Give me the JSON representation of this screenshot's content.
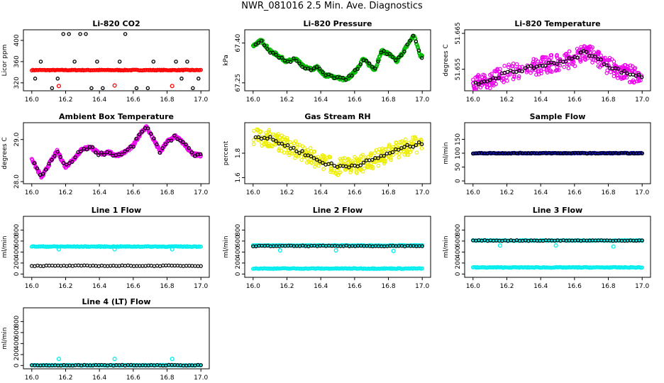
{
  "page_title": "NWR_081016  2.5 Min. Ave. Diagnostics",
  "chart_data": [
    {
      "type": "scatter",
      "title": "Li-820 CO2",
      "ylabel": "Licor ppm",
      "xlim": [
        16.0,
        17.0
      ],
      "ylim": [
        305,
        420
      ],
      "xticks": [
        "16.0",
        "16.2",
        "16.4",
        "16.6",
        "16.8",
        "17.0"
      ],
      "yticks": [
        "320",
        "360",
        "400"
      ],
      "series": [
        {
          "color": "#ff0000",
          "kind": "flat",
          "y": 344
        },
        {
          "color": "#000000",
          "kind": "levels",
          "y": [
            310,
            328,
            344,
            360,
            412
          ],
          "x_step": 0.0333
        },
        {
          "color": "#ff0000",
          "kind": "points",
          "x": [
            16.16,
            16.49,
            16.83
          ],
          "y": [
            314,
            315,
            314
          ]
        }
      ]
    },
    {
      "type": "scatter",
      "title": "Li-820 Pressure",
      "ylabel": "kPa",
      "xlim": [
        16.0,
        17.0
      ],
      "ylim": [
        67.22,
        67.45
      ],
      "xticks": [
        "16.0",
        "16.2",
        "16.4",
        "16.6",
        "16.8",
        "17.0"
      ],
      "yticks": [
        "67.25",
        "67.40"
      ],
      "series": [
        {
          "color": "#00bb00",
          "kind": "line",
          "x": [
            16.0,
            16.05,
            16.1,
            16.13,
            16.2,
            16.25,
            16.3,
            16.35,
            16.38,
            16.42,
            16.5,
            16.55,
            16.6,
            16.65,
            16.7,
            16.72,
            16.76,
            16.8,
            16.85,
            16.9,
            16.95,
            16.97,
            16.99
          ],
          "y": [
            67.39,
            67.41,
            67.37,
            67.36,
            67.33,
            67.34,
            67.31,
            67.3,
            67.31,
            67.28,
            67.27,
            67.26,
            67.29,
            67.34,
            67.31,
            67.3,
            67.37,
            67.36,
            67.33,
            67.38,
            67.43,
            67.39,
            67.35
          ]
        },
        {
          "color": "#000000",
          "kind": "sample"
        }
      ]
    },
    {
      "type": "scatter",
      "title": "Li-820 Temperature",
      "ylabel": "degrees C",
      "xlim": [
        16.0,
        17.0
      ],
      "ylim": [
        51.649,
        51.666
      ],
      "xticks": [
        "16.0",
        "16.2",
        "16.4",
        "16.6",
        "16.8",
        "17.0"
      ],
      "yticks": [
        "51.655",
        "51.665"
      ],
      "series": [
        {
          "color": "#ee00ee",
          "kind": "noisy",
          "x": [
            16.0,
            16.1,
            16.2,
            16.3,
            16.4,
            16.5,
            16.6,
            16.65,
            16.7,
            16.8,
            16.9,
            17.0
          ],
          "y": [
            51.651,
            51.652,
            51.654,
            51.655,
            51.656,
            51.657,
            51.658,
            51.66,
            51.659,
            51.656,
            51.654,
            51.653
          ]
        },
        {
          "color": "#000000",
          "kind": "sample"
        }
      ]
    },
    {
      "type": "scatter",
      "title": "Ambient Box Temperature",
      "ylabel": "degrees C",
      "xlim": [
        16.0,
        17.0
      ],
      "ylim": [
        27.95,
        29.4
      ],
      "xticks": [
        "16.0",
        "16.2",
        "16.4",
        "16.6",
        "16.8",
        "17.0"
      ],
      "yticks": [
        "28.0",
        "29.0"
      ],
      "series": [
        {
          "color": "#ee00ee",
          "kind": "line",
          "x": [
            16.0,
            16.03,
            16.06,
            16.1,
            16.15,
            16.2,
            16.25,
            16.3,
            16.35,
            16.4,
            16.45,
            16.5,
            16.55,
            16.6,
            16.65,
            16.68,
            16.72,
            16.76,
            16.8,
            16.85,
            16.9,
            16.95,
            17.0
          ],
          "y": [
            28.55,
            28.3,
            28.1,
            28.4,
            28.72,
            28.35,
            28.55,
            28.78,
            28.82,
            28.65,
            28.7,
            28.62,
            28.7,
            28.85,
            29.2,
            29.3,
            29.0,
            28.7,
            28.95,
            29.08,
            28.9,
            28.65,
            28.62
          ]
        },
        {
          "color": "#000000",
          "kind": "sample"
        }
      ]
    },
    {
      "type": "scatter",
      "title": "Gas Stream RH",
      "ylabel": "percent",
      "xlim": [
        16.0,
        17.0
      ],
      "ylim": [
        1.55,
        2.05
      ],
      "xticks": [
        "16.0",
        "16.2",
        "16.4",
        "16.6",
        "16.8",
        "17.0"
      ],
      "yticks": [
        "1.6",
        "1.8"
      ],
      "series": [
        {
          "color": "#eeee00",
          "kind": "noisy",
          "x": [
            16.0,
            16.1,
            16.2,
            16.3,
            16.4,
            16.5,
            16.6,
            16.7,
            16.8,
            16.9,
            17.0
          ],
          "y": [
            1.94,
            1.92,
            1.86,
            1.8,
            1.73,
            1.69,
            1.7,
            1.74,
            1.8,
            1.85,
            1.88
          ]
        },
        {
          "color": "#000000",
          "kind": "sample"
        }
      ]
    },
    {
      "type": "scatter",
      "title": "Sample Flow",
      "ylabel": "ml/min",
      "xlim": [
        16.0,
        17.0
      ],
      "ylim": [
        -10,
        210
      ],
      "xticks": [
        "16.0",
        "16.2",
        "16.4",
        "16.6",
        "16.8",
        "17.0"
      ],
      "yticks": [
        "0",
        "50",
        "100",
        "150"
      ],
      "series": [
        {
          "color": "#0000aa",
          "kind": "flat",
          "y": 100
        },
        {
          "color": "#000000",
          "kind": "flat",
          "y": 100
        }
      ]
    },
    {
      "type": "scatter",
      "title": "Line 1 Flow",
      "ylabel": "ml/min",
      "xlim": [
        16.0,
        17.0
      ],
      "ylim": [
        -60,
        1050
      ],
      "xticks": [
        "16.0",
        "16.2",
        "16.4",
        "16.6",
        "16.8",
        "17.0"
      ],
      "yticks": [
        "0",
        "200",
        "400",
        "600",
        "800"
      ],
      "series": [
        {
          "color": "#00eeee",
          "kind": "flat",
          "y": 500
        },
        {
          "color": "#00eeee",
          "kind": "points",
          "x": [
            16.16,
            16.49,
            16.83
          ],
          "y": [
            450,
            450,
            450
          ]
        },
        {
          "color": "#000000",
          "kind": "flat",
          "y": 150
        }
      ]
    },
    {
      "type": "scatter",
      "title": "Line 2 Flow",
      "ylabel": "ml/min",
      "xlim": [
        16.0,
        17.0
      ],
      "ylim": [
        -60,
        1050
      ],
      "xticks": [
        "16.0",
        "16.2",
        "16.4",
        "16.6",
        "16.8",
        "17.0"
      ],
      "yticks": [
        "0",
        "200",
        "400",
        "600",
        "800"
      ],
      "series": [
        {
          "color": "#00eeee",
          "kind": "flat",
          "y": 100
        },
        {
          "color": "#00eeee",
          "kind": "flat",
          "y": 520
        },
        {
          "color": "#00eeee",
          "kind": "points",
          "x": [
            16.16,
            16.49,
            16.83
          ],
          "y": [
            430,
            430,
            420
          ]
        },
        {
          "color": "#000000",
          "kind": "flat",
          "y": 510
        }
      ]
    },
    {
      "type": "scatter",
      "title": "Line 3 Flow",
      "ylabel": "ml/min",
      "xlim": [
        16.0,
        17.0
      ],
      "ylim": [
        -60,
        1050
      ],
      "xticks": [
        "16.0",
        "16.2",
        "16.4",
        "16.6",
        "16.8",
        "17.0"
      ],
      "yticks": [
        "0",
        "200",
        "400",
        "600",
        "800"
      ],
      "series": [
        {
          "color": "#00eeee",
          "kind": "flat",
          "y": 120
        },
        {
          "color": "#00eeee",
          "kind": "flat",
          "y": 610
        },
        {
          "color": "#00eeee",
          "kind": "points",
          "x": [
            16.16,
            16.49,
            16.83
          ],
          "y": [
            520,
            520,
            500
          ]
        },
        {
          "color": "#000000",
          "kind": "flat",
          "y": 610
        }
      ]
    },
    {
      "type": "scatter",
      "title": "Line 4 (LT) Flow",
      "ylabel": "ml/min",
      "xlim": [
        16.0,
        17.0
      ],
      "ylim": [
        -60,
        1050
      ],
      "xticks": [
        "16.0",
        "16.2",
        "16.4",
        "16.6",
        "16.8",
        "17.0"
      ],
      "yticks": [
        "0",
        "200",
        "400",
        "600",
        "800"
      ],
      "series": [
        {
          "color": "#00eeee",
          "kind": "flat",
          "y": 5
        },
        {
          "color": "#00eeee",
          "kind": "points",
          "x": [
            16.16,
            16.49,
            16.83
          ],
          "y": [
            120,
            120,
            120
          ]
        },
        {
          "color": "#000000",
          "kind": "flat",
          "y": 5
        }
      ]
    }
  ]
}
